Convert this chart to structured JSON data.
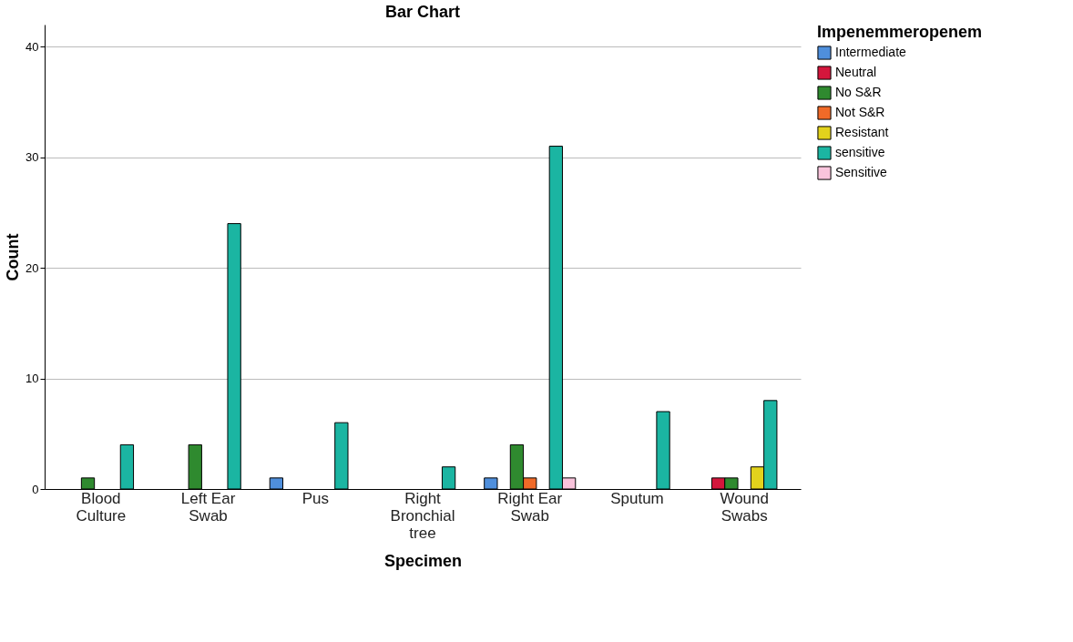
{
  "chart_data": {
    "type": "bar",
    "title": "Bar Chart",
    "xlabel": "Specimen",
    "ylabel": "Count",
    "legend_title": "Impenemmeropenem",
    "categories": [
      "Blood Culture",
      "Left Ear Swab",
      "Pus",
      "Right Bronchial tree",
      "Right Ear Swab",
      "Sputum",
      "Wound Swabs"
    ],
    "series": [
      {
        "name": "Intermediate",
        "color": "#4f8fdc",
        "values": [
          null,
          null,
          1,
          null,
          1,
          null,
          null
        ]
      },
      {
        "name": "Neutral",
        "color": "#d4163c",
        "values": [
          null,
          null,
          null,
          null,
          null,
          null,
          1
        ]
      },
      {
        "name": "No S&R",
        "color": "#2f8a2f",
        "values": [
          1,
          4,
          null,
          null,
          4,
          null,
          1
        ]
      },
      {
        "name": "Not S&R",
        "color": "#f06a28",
        "values": [
          null,
          null,
          null,
          null,
          1,
          null,
          null
        ]
      },
      {
        "name": "Resistant",
        "color": "#e2d21c",
        "values": [
          null,
          null,
          null,
          null,
          null,
          null,
          2
        ]
      },
      {
        "name": "sensitive",
        "color": "#1bb5a2",
        "values": [
          4,
          24,
          6,
          2,
          31,
          7,
          8
        ]
      },
      {
        "name": "Sensitive",
        "color": "#f9c4dc",
        "values": [
          null,
          null,
          null,
          null,
          1,
          null,
          null
        ]
      }
    ],
    "ylim": [
      0,
      42
    ],
    "yticks": [
      0,
      10,
      20,
      30,
      40
    ],
    "grid": "y",
    "legend": "top right"
  }
}
